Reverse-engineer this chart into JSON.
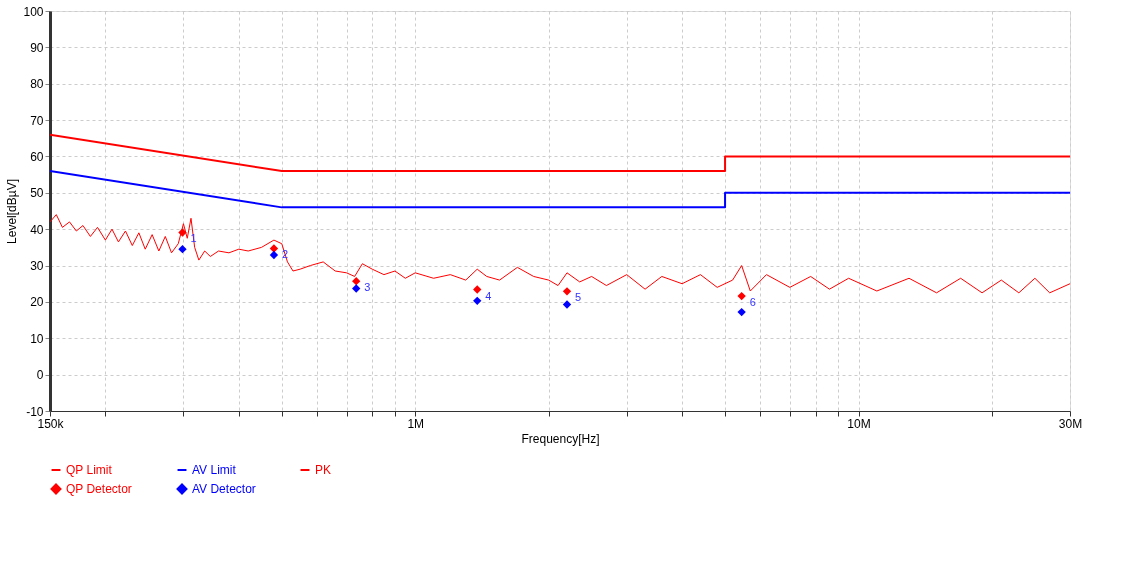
{
  "chart_data": {
    "type": "line",
    "xlabel": "Frequency[Hz]",
    "ylabel": "Level[dBµV]",
    "log": "x",
    "grid": true,
    "legend": "bottom left",
    "xlim": [
      150000,
      30000000
    ],
    "xticks": [
      {
        "value": 150000,
        "label": "150k"
      },
      {
        "value": 200000,
        "label": null
      },
      {
        "value": 300000,
        "label": null
      },
      {
        "value": 400000,
        "label": null
      },
      {
        "value": 500000,
        "label": null
      },
      {
        "value": 600000,
        "label": null
      },
      {
        "value": 700000,
        "label": null
      },
      {
        "value": 800000,
        "label": null
      },
      {
        "value": 900000,
        "label": null
      },
      {
        "value": 1000000,
        "label": "1M"
      },
      {
        "value": 2000000,
        "label": null
      },
      {
        "value": 3000000,
        "label": null
      },
      {
        "value": 4000000,
        "label": null
      },
      {
        "value": 5000000,
        "label": null
      },
      {
        "value": 6000000,
        "label": null
      },
      {
        "value": 7000000,
        "label": null
      },
      {
        "value": 8000000,
        "label": null
      },
      {
        "value": 9000000,
        "label": null
      },
      {
        "value": 10000000,
        "label": "10M"
      },
      {
        "value": 20000000,
        "label": null
      },
      {
        "value": 30000000,
        "label": "30M"
      }
    ],
    "ylim": [
      -10,
      100
    ],
    "yticks": [
      -10,
      0,
      10,
      20,
      30,
      40,
      50,
      60,
      70,
      80,
      90,
      100
    ],
    "series": [
      {
        "name": "QP Limit",
        "type": "line",
        "color": "#ff0000",
        "x": [
          150000,
          500000,
          5000000,
          5000000,
          30000000
        ],
        "values": [
          66,
          56,
          56,
          60,
          60
        ]
      },
      {
        "name": "AV Limit",
        "type": "line",
        "color": "#0000ff",
        "x": [
          150000,
          500000,
          5000000,
          5000000,
          30000000
        ],
        "values": [
          56,
          46,
          46,
          50,
          50
        ]
      },
      {
        "name": "PK",
        "type": "line",
        "color": "#ff0000",
        "x": [
          150000,
          155000,
          160000,
          166000,
          172000,
          178000,
          185000,
          192000,
          200000,
          207000,
          214000,
          222000,
          230000,
          238000,
          246000,
          255000,
          264000,
          273000,
          282000,
          292000,
          300000,
          306000,
          312000,
          318000,
          325000,
          335000,
          345000,
          360000,
          380000,
          400000,
          420000,
          450000,
          480000,
          500000,
          515000,
          530000,
          550000,
          580000,
          620000,
          660000,
          700000,
          730000,
          760000,
          800000,
          850000,
          900000,
          950000,
          1000000,
          1100000,
          1200000,
          1300000,
          1380000,
          1450000,
          1550000,
          1700000,
          1850000,
          2000000,
          2100000,
          2200000,
          2350000,
          2500000,
          2700000,
          3000000,
          3300000,
          3600000,
          4000000,
          4400000,
          4800000,
          5200000,
          5450000,
          5700000,
          6200000,
          7000000,
          7800000,
          8600000,
          9500000,
          11000000,
          13000000,
          15000000,
          17000000,
          19000000,
          21000000,
          23000000,
          25000000,
          27000000,
          30000000
        ],
        "values": [
          42,
          44,
          40.5,
          42,
          39.5,
          41,
          38,
          40.5,
          37,
          40,
          36.5,
          39.5,
          35.5,
          39,
          34.5,
          38.5,
          34,
          38,
          33.5,
          36,
          41.5,
          37.5,
          43,
          35,
          31.5,
          34,
          32.5,
          34,
          33.5,
          34.5,
          34,
          35,
          37,
          36,
          31,
          28.5,
          29,
          30,
          31,
          28.5,
          28,
          27,
          30.5,
          29,
          27.5,
          28.5,
          26.5,
          28,
          26.5,
          27.5,
          26,
          29,
          27,
          26,
          29.5,
          27,
          26,
          24.5,
          28,
          25.5,
          27,
          24.5,
          27.5,
          23.5,
          27,
          25,
          27.5,
          24,
          26,
          30,
          23,
          27.5,
          24,
          27,
          23.5,
          26.5,
          23,
          26.5,
          22.5,
          26.5,
          22.5,
          26,
          22.5,
          26.5,
          22.5,
          25
        ]
      },
      {
        "name": "QP Detector",
        "type": "scatter",
        "marker": "diamond",
        "color": "#ff0000",
        "x": [
          298500,
          480000,
          736000,
          1380000,
          2200000,
          5450000
        ],
        "values": [
          39.1,
          34.7,
          25.7,
          23.4,
          22.9,
          21.6
        ]
      },
      {
        "name": "AV Detector",
        "type": "scatter",
        "marker": "diamond",
        "color": "#0000ff",
        "x": [
          298500,
          480000,
          736000,
          1380000,
          2200000,
          5450000
        ],
        "values": [
          34.5,
          32.9,
          23.7,
          20.3,
          19.3,
          17.2
        ]
      }
    ],
    "annotations": [
      {
        "text": "1",
        "x": 298500,
        "y": 39.1
      },
      {
        "text": "2",
        "x": 480000,
        "y": 34.7
      },
      {
        "text": "3",
        "x": 736000,
        "y": 25.7
      },
      {
        "text": "4",
        "x": 1380000,
        "y": 23.4
      },
      {
        "text": "5",
        "x": 2200000,
        "y": 22.9
      },
      {
        "text": "6",
        "x": 5450000,
        "y": 21.6
      }
    ]
  }
}
